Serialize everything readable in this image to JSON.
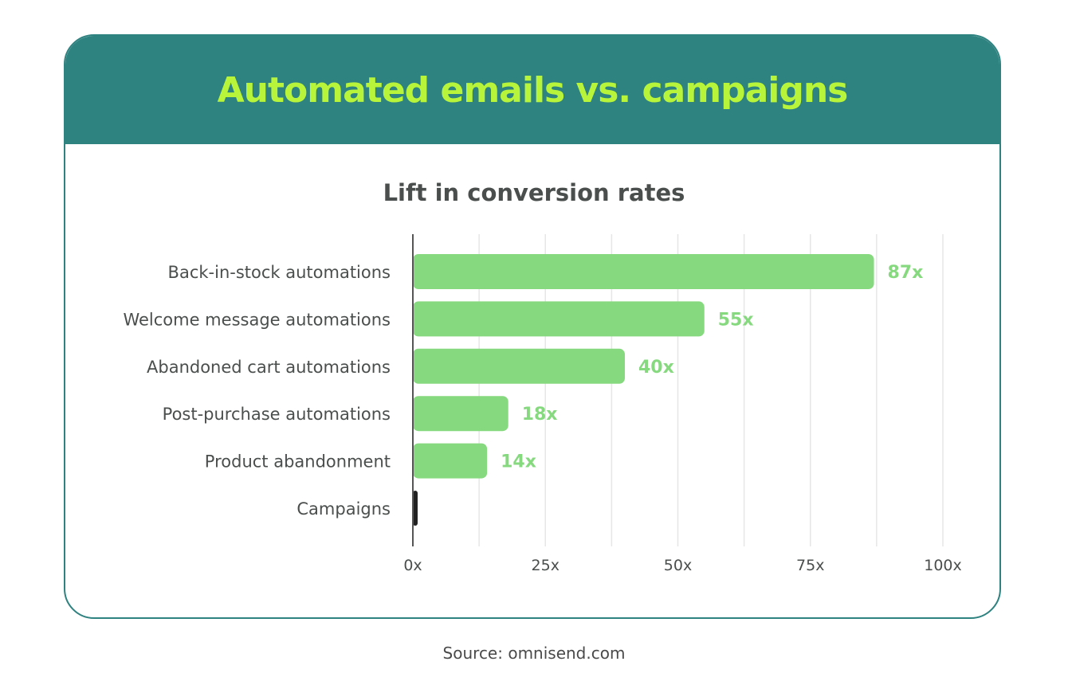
{
  "header": {
    "title": "Automated emails vs. campaigns"
  },
  "source": "Source: omnisend.com",
  "colors": {
    "header_bg": "#2e8280",
    "title": "#b8f53a",
    "bar": "#86d97f",
    "baseline_bar": "#222222",
    "value_label": "#86d97f",
    "text": "#4a4e4d",
    "grid": "#e6e6e6"
  },
  "chart_data": {
    "type": "bar",
    "orientation": "horizontal",
    "title": "Lift in conversion rates",
    "categories": [
      "Back-in-stock automations",
      "Welcome message automations",
      "Abandoned cart automations",
      "Post-purchase automations",
      "Product abandonment",
      "Campaigns"
    ],
    "values": [
      87,
      55,
      40,
      18,
      14,
      1
    ],
    "value_labels": [
      "87x",
      "55x",
      "40x",
      "18x",
      "14x",
      ""
    ],
    "xlim": [
      0,
      100
    ],
    "xticks": [
      0,
      25,
      50,
      75,
      100
    ],
    "xtick_labels": [
      "0x",
      "25x",
      "50x",
      "75x",
      "100x"
    ],
    "grid": true
  }
}
